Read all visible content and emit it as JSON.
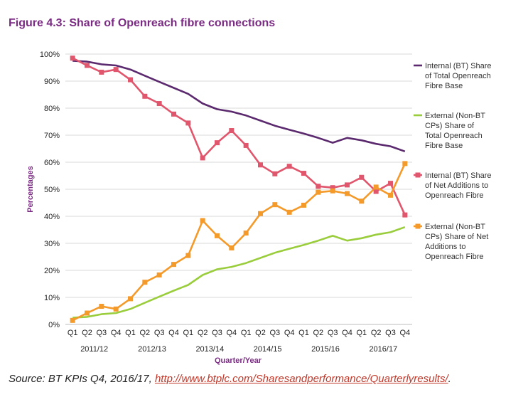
{
  "figure_title": "Figure 4.3: Share of Openreach fibre connections",
  "source": {
    "prefix": "Source: BT KPIs Q4, 2016/17, ",
    "link": "http://www.btplc.com/Sharesandperformance/Quarterlyresults/",
    "suffix": "."
  },
  "chart_data": {
    "type": "line",
    "xlabel": "Quarter/Year",
    "ylabel": "Percentages",
    "ylim": [
      0,
      100
    ],
    "yticks": [
      "0%",
      "10%",
      "20%",
      "30%",
      "40%",
      "50%",
      "60%",
      "70%",
      "80%",
      "90%",
      "100%"
    ],
    "categories": [
      "Q1",
      "Q2",
      "Q3",
      "Q4",
      "Q1",
      "Q2",
      "Q3",
      "Q4",
      "Q1",
      "Q2",
      "Q3",
      "Q4",
      "Q1",
      "Q2",
      "Q3",
      "Q4",
      "Q1",
      "Q2",
      "Q3",
      "Q4",
      "Q1",
      "Q2",
      "Q3",
      "Q4"
    ],
    "year_groups": [
      "2011/12",
      "2012/13",
      "2013/14",
      "2014/15",
      "2015/16",
      "2016/17"
    ],
    "grid": "horizontal",
    "legend_position": "right",
    "series": [
      {
        "name": "Internal (BT) Share of Total Openreach Fibre Base",
        "legend_lines": [
          "Internal (BT) Share",
          "of Total Openreach",
          "Fibre Base"
        ],
        "color": "#5b2a6e",
        "marker": "none",
        "values": [
          97.5,
          97.2,
          96.2,
          95.8,
          94.3,
          92.0,
          89.7,
          87.5,
          85.3,
          81.7,
          79.6,
          78.7,
          77.3,
          75.4,
          73.5,
          72.0,
          70.6,
          69.0,
          67.2,
          69.0,
          68.1,
          66.8,
          65.9,
          64.0
        ]
      },
      {
        "name": "External (Non-BT CPs) Share of Total Openreach Fibre Base",
        "legend_lines": [
          "External (Non-BT",
          "CPs) Share of",
          "Total Openreach",
          "Fibre Base"
        ],
        "color": "#9acd3c",
        "marker": "none",
        "values": [
          2.5,
          2.8,
          3.8,
          4.2,
          5.7,
          8.0,
          10.3,
          12.5,
          14.6,
          18.3,
          20.4,
          21.3,
          22.7,
          24.6,
          26.5,
          28.0,
          29.4,
          31.0,
          32.8,
          31.0,
          31.9,
          33.2,
          34.1,
          36.0
        ]
      },
      {
        "name": "Internal (BT) Share of Net Additions to Openreach Fibre",
        "legend_lines": [
          "Internal (BT) Share",
          "of Net Additions to",
          "Openreach Fibre"
        ],
        "color": "#e0566c",
        "marker": "square",
        "values": [
          98.5,
          95.8,
          93.3,
          94.3,
          90.5,
          84.4,
          81.7,
          77.8,
          74.5,
          61.6,
          67.2,
          71.7,
          66.2,
          59.0,
          55.7,
          58.5,
          55.9,
          51.1,
          50.6,
          51.6,
          54.4,
          49.2,
          52.2,
          40.5
        ]
      },
      {
        "name": "External (Non-BT CPs) Share of Net Additions to Openreach Fibre",
        "legend_lines": [
          "External (Non-BT",
          "CPs) Share of Net",
          "Additions to",
          "Openreach Fibre"
        ],
        "color": "#f39a2b",
        "marker": "square",
        "values": [
          1.5,
          4.2,
          6.7,
          5.7,
          9.5,
          15.6,
          18.3,
          22.2,
          25.5,
          38.4,
          32.8,
          28.3,
          33.8,
          41.0,
          44.3,
          41.5,
          44.1,
          48.9,
          49.4,
          48.4,
          45.6,
          50.8,
          47.8,
          59.5
        ]
      }
    ]
  }
}
